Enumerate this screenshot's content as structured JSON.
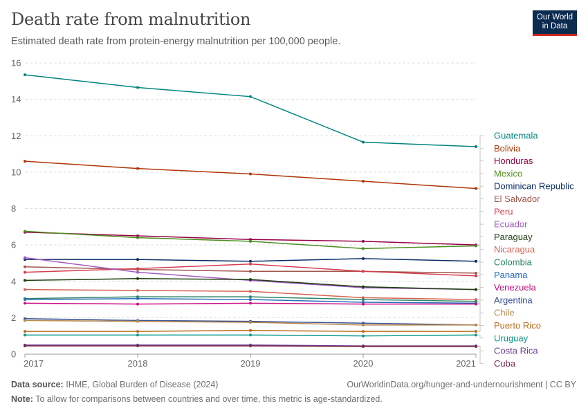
{
  "header": {
    "title": "Death rate from malnutrition",
    "subtitle": "Estimated death rate from protein-energy malnutrition per 100,000 people."
  },
  "logo": {
    "line1": "Our World",
    "line2": "in Data",
    "bg": "#0b2b50",
    "accent": "#ce261e"
  },
  "footer": {
    "source_label": "Data source:",
    "source": "IHME, Global Burden of Disease (2024)",
    "note_label": "Note:",
    "note": "To allow for comparisons between countries and over time, this metric is age-standardized.",
    "url": "OurWorldinData.org/hunger-and-undernourishment | CC BY"
  },
  "chart_data": {
    "type": "line",
    "title": "Death rate from malnutrition",
    "xlabel": "",
    "ylabel": "",
    "x": [
      2017,
      2018,
      2019,
      2020,
      2021
    ],
    "ylim": [
      0,
      16
    ],
    "yticks": [
      0,
      2,
      4,
      6,
      8,
      10,
      12,
      14,
      16
    ],
    "grid": true,
    "legend": "right (end-of-line labels)",
    "series": [
      {
        "name": "Guatemala",
        "color": "#00847e",
        "values": [
          15.35,
          14.65,
          14.15,
          11.65,
          11.4
        ]
      },
      {
        "name": "Bolivia",
        "color": "#b13507",
        "values": [
          10.6,
          10.2,
          9.9,
          9.5,
          9.1
        ]
      },
      {
        "name": "Honduras",
        "color": "#970046",
        "values": [
          6.7,
          6.5,
          6.3,
          6.2,
          6.0
        ]
      },
      {
        "name": "Mexico",
        "color": "#4c8e1f",
        "values": [
          6.75,
          6.4,
          6.2,
          5.8,
          5.95
        ]
      },
      {
        "name": "Dominican Republic",
        "color": "#0c2d66",
        "values": [
          5.2,
          5.2,
          5.1,
          5.25,
          5.1
        ]
      },
      {
        "name": "El Salvador",
        "color": "#a2554a",
        "values": [
          4.8,
          4.65,
          4.55,
          4.55,
          4.45
        ]
      },
      {
        "name": "Peru",
        "color": "#d73c50",
        "values": [
          4.5,
          4.7,
          4.95,
          4.55,
          4.3
        ]
      },
      {
        "name": "Ecuador",
        "color": "#a45ac0",
        "values": [
          5.3,
          4.5,
          4.05,
          3.65,
          3.55
        ]
      },
      {
        "name": "Paraguay",
        "color": "#1d3f10",
        "values": [
          4.05,
          4.15,
          4.1,
          3.7,
          3.55
        ]
      },
      {
        "name": "Nicaragua",
        "color": "#d66250",
        "values": [
          3.55,
          3.5,
          3.45,
          3.1,
          3.0
        ]
      },
      {
        "name": "Colombia",
        "color": "#2c8465",
        "values": [
          3.05,
          3.15,
          3.15,
          3.0,
          2.9
        ]
      },
      {
        "name": "Panama",
        "color": "#286bbb",
        "values": [
          3.0,
          3.05,
          3.0,
          2.85,
          2.8
        ]
      },
      {
        "name": "Venezuela",
        "color": "#c90f85",
        "values": [
          2.8,
          2.75,
          2.8,
          2.75,
          2.75
        ]
      },
      {
        "name": "Argentina",
        "color": "#3a5093",
        "values": [
          1.95,
          1.85,
          1.8,
          1.7,
          1.6
        ]
      },
      {
        "name": "Chile",
        "color": "#b9894b",
        "values": [
          1.85,
          1.8,
          1.75,
          1.6,
          1.6
        ]
      },
      {
        "name": "Puerto Rico",
        "color": "#bc6b1a",
        "values": [
          1.25,
          1.25,
          1.3,
          1.25,
          1.25
        ]
      },
      {
        "name": "Uruguay",
        "color": "#0f9a8c",
        "values": [
          1.05,
          1.05,
          1.05,
          1.0,
          1.05
        ]
      },
      {
        "name": "Costa Rica",
        "color": "#6b3d91",
        "values": [
          0.5,
          0.5,
          0.5,
          0.45,
          0.45
        ]
      },
      {
        "name": "Cuba",
        "color": "#7d2a48",
        "values": [
          0.45,
          0.45,
          0.45,
          0.42,
          0.42
        ]
      }
    ]
  }
}
